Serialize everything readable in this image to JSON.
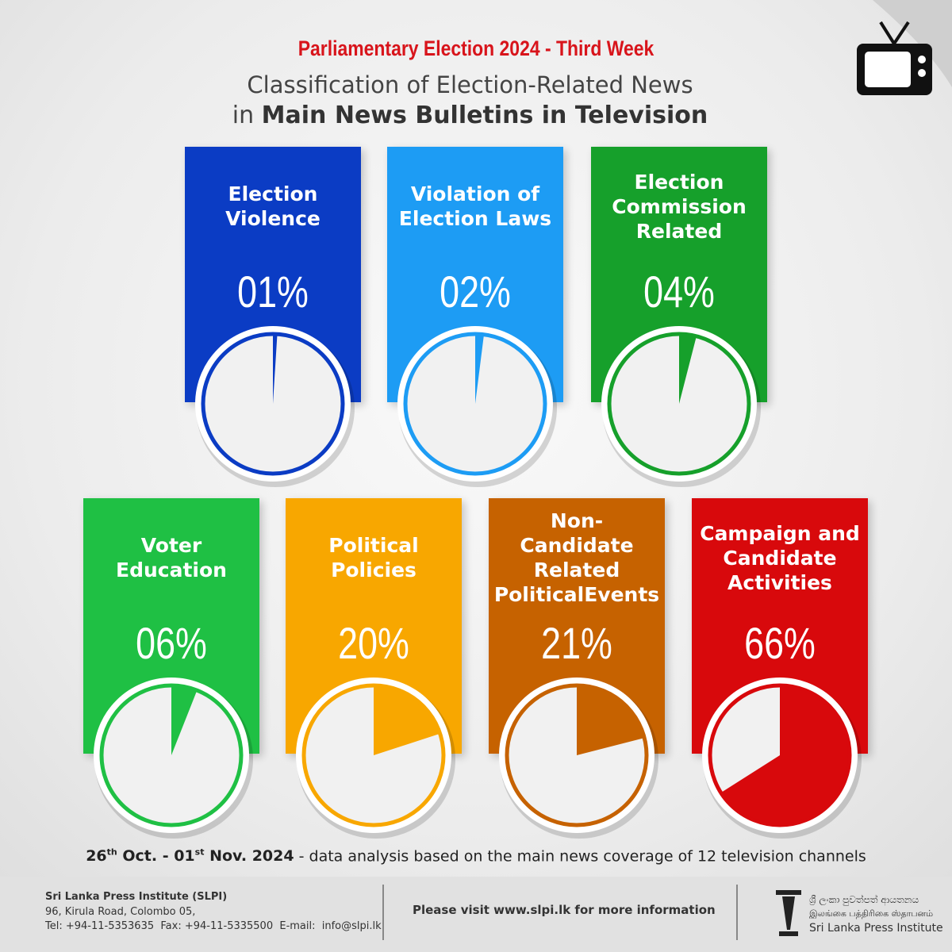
{
  "header": {
    "kicker": "Parliamentary Election 2024 - Third Week",
    "subtitle": "Classification of Election-Related News",
    "subtitle_prefix": "in",
    "subtitle_bold": "Main News Bulletins in Television"
  },
  "chart_data": {
    "type": "pie",
    "categories": [
      "Election Violence",
      "Violation of Election Laws",
      "Election Commission Related",
      "Voter Education",
      "Political Policies",
      "Non-Candidate Related PoliticalEvents",
      "Campaign and Candidate Activities"
    ],
    "values": [
      1,
      2,
      4,
      6,
      20,
      21,
      66
    ],
    "value_labels": [
      "01%",
      "02%",
      "04%",
      "06%",
      "20%",
      "21%",
      "66%"
    ],
    "colors": [
      "#0b3cc4",
      "#1d9cf4",
      "#16a02b",
      "#1fc044",
      "#f8a700",
      "#c66200",
      "#d8090c"
    ]
  },
  "note": {
    "date_parts": [
      "26",
      "th",
      " Oct. - 01",
      "st",
      " Nov. 2024"
    ],
    "text": " - data analysis based on the main news coverage of 12 television channels"
  },
  "footer": {
    "org": "Sri Lanka Press Institute (SLPI)",
    "address": "96, Kirula Road, Colombo 05,",
    "contact": "Tel: +94-11-5353635  Fax: +94-11-5335500  E-mail:  info@slpi.lk",
    "visit": "Please visit www.slpi.lk for more information",
    "logo_si": "ශ්‍රී ලංකා පුවත්පත් ආයතනය",
    "logo_ta": "இலங்கை பத்திரிகை ஸ்தாபனம்",
    "logo_en": "Sri Lanka Press Institute"
  }
}
